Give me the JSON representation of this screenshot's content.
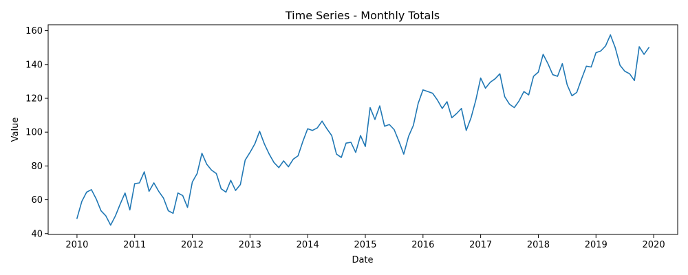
{
  "chart_data": {
    "type": "line",
    "title": "Time Series - Monthly Totals",
    "xlabel": "Date",
    "ylabel": "Value",
    "xlim": [
      "2009-07",
      "2020-06"
    ],
    "ylim": [
      39.5,
      163.5
    ],
    "x_ticks": [
      "2010",
      "2011",
      "2012",
      "2013",
      "2014",
      "2015",
      "2016",
      "2017",
      "2018",
      "2019",
      "2020"
    ],
    "y_ticks": [
      40,
      60,
      80,
      100,
      120,
      140,
      160
    ],
    "grid": false,
    "legend": "none",
    "series": [
      {
        "color": "#1f77b4",
        "x": [
          "2010-01",
          "2010-02",
          "2010-03",
          "2010-04",
          "2010-05",
          "2010-06",
          "2010-07",
          "2010-08",
          "2010-09",
          "2010-10",
          "2010-11",
          "2010-12",
          "2011-01",
          "2011-02",
          "2011-03",
          "2011-04",
          "2011-05",
          "2011-06",
          "2011-07",
          "2011-08",
          "2011-09",
          "2011-10",
          "2011-11",
          "2011-12",
          "2012-01",
          "2012-02",
          "2012-03",
          "2012-04",
          "2012-05",
          "2012-06",
          "2012-07",
          "2012-08",
          "2012-09",
          "2012-10",
          "2012-11",
          "2012-12",
          "2013-01",
          "2013-02",
          "2013-03",
          "2013-04",
          "2013-05",
          "2013-06",
          "2013-07",
          "2013-08",
          "2013-09",
          "2013-10",
          "2013-11",
          "2013-12",
          "2014-01",
          "2014-02",
          "2014-03",
          "2014-04",
          "2014-05",
          "2014-06",
          "2014-07",
          "2014-08",
          "2014-09",
          "2014-10",
          "2014-11",
          "2014-12",
          "2015-01",
          "2015-02",
          "2015-03",
          "2015-04",
          "2015-05",
          "2015-06",
          "2015-07",
          "2015-08",
          "2015-09",
          "2015-10",
          "2015-11",
          "2015-12",
          "2016-01",
          "2016-02",
          "2016-03",
          "2016-04",
          "2016-05",
          "2016-06",
          "2016-07",
          "2016-08",
          "2016-09",
          "2016-10",
          "2016-11",
          "2016-12",
          "2017-01",
          "2017-02",
          "2017-03",
          "2017-04",
          "2017-05",
          "2017-06",
          "2017-07",
          "2017-08",
          "2017-09",
          "2017-10",
          "2017-11",
          "2017-12",
          "2018-01",
          "2018-02",
          "2018-03",
          "2018-04",
          "2018-05",
          "2018-06",
          "2018-07",
          "2018-08",
          "2018-09",
          "2018-10",
          "2018-11",
          "2018-12",
          "2019-01",
          "2019-02",
          "2019-03",
          "2019-04",
          "2019-05",
          "2019-06",
          "2019-07",
          "2019-08",
          "2019-09",
          "2019-10",
          "2019-11",
          "2019-12"
        ],
        "values": [
          49,
          59,
          64.5,
          66,
          60.5,
          53.5,
          50.5,
          45,
          50.5,
          57.5,
          64,
          54,
          69.5,
          70,
          76.5,
          65,
          70,
          65,
          61,
          53.5,
          52,
          64,
          62.5,
          55.5,
          70.5,
          75.5,
          87.5,
          81,
          77.5,
          75.5,
          66.5,
          64.5,
          71.5,
          65.5,
          69,
          83.5,
          88,
          93,
          100.5,
          93,
          87,
          82,
          79,
          83,
          79.5,
          84,
          86,
          94.5,
          102,
          101,
          102.5,
          106.5,
          102,
          98,
          87,
          85,
          93.5,
          94,
          88,
          98,
          91.5,
          114.5,
          107.5,
          115.5,
          103.5,
          104.5,
          101.5,
          94.5,
          87,
          97.5,
          104,
          117,
          125,
          124,
          123,
          119,
          114,
          118,
          108.5,
          111,
          114,
          101,
          108.5,
          119,
          132,
          126,
          129.5,
          131.5,
          134.5,
          121,
          116.5,
          114.5,
          118.5,
          124,
          122,
          133,
          135.5,
          146,
          140.5,
          134,
          133,
          140.5,
          128,
          121.5,
          123.5,
          131.5,
          139,
          138.5,
          147,
          148,
          151,
          157.5,
          150,
          139.5,
          136,
          134.5,
          130.5,
          150.5,
          146,
          150
        ]
      }
    ]
  }
}
